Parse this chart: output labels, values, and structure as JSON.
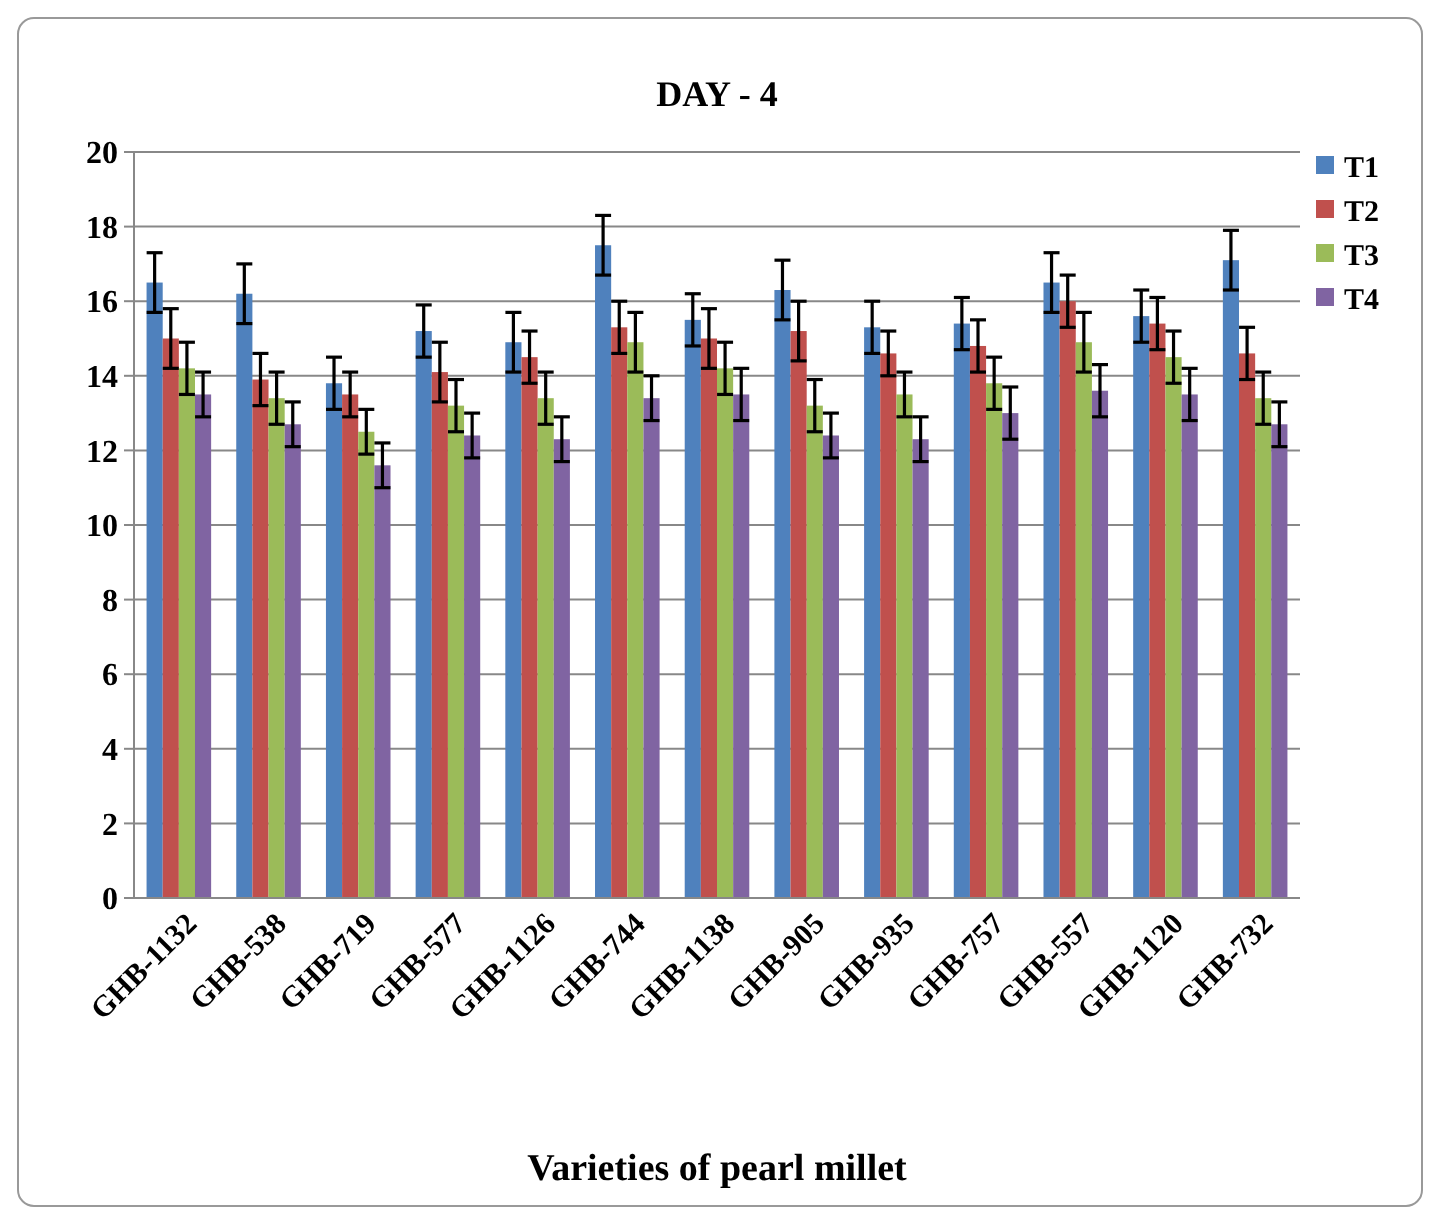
{
  "chart_data": {
    "type": "bar",
    "title": "DAY - 4",
    "xlabel": "Varieties of pearl millet",
    "categories": [
      "GHB-1132",
      "GHB-538",
      "GHB-719",
      "GHB-577",
      "GHB-1126",
      "GHB-744",
      "GHB-1138",
      "GHB-905",
      "GHB-935",
      "GHB-757",
      "GHB-557",
      "GHB-1120",
      "GHB-732"
    ],
    "series": [
      {
        "name": "T1",
        "color": "#4f81bd",
        "values": [
          16.5,
          16.2,
          13.8,
          15.2,
          14.9,
          17.5,
          15.5,
          16.3,
          15.3,
          15.4,
          16.5,
          15.6,
          17.1
        ],
        "errors": [
          0.8,
          0.8,
          0.7,
          0.7,
          0.8,
          0.8,
          0.7,
          0.8,
          0.7,
          0.7,
          0.8,
          0.7,
          0.8
        ]
      },
      {
        "name": "T2",
        "color": "#c0504d",
        "values": [
          15.0,
          13.9,
          13.5,
          14.1,
          14.5,
          15.3,
          15.0,
          15.2,
          14.6,
          14.8,
          16.0,
          15.4,
          14.6
        ],
        "errors": [
          0.8,
          0.7,
          0.6,
          0.8,
          0.7,
          0.7,
          0.8,
          0.8,
          0.6,
          0.7,
          0.7,
          0.7,
          0.7
        ]
      },
      {
        "name": "T3",
        "color": "#9bbb59",
        "values": [
          14.2,
          13.4,
          12.5,
          13.2,
          13.4,
          14.9,
          14.2,
          13.2,
          13.5,
          13.8,
          14.9,
          14.5,
          13.4
        ],
        "errors": [
          0.7,
          0.7,
          0.6,
          0.7,
          0.7,
          0.8,
          0.7,
          0.7,
          0.6,
          0.7,
          0.8,
          0.7,
          0.7
        ]
      },
      {
        "name": "T4",
        "color": "#8064a2",
        "values": [
          13.5,
          12.7,
          11.6,
          12.4,
          12.3,
          13.4,
          13.5,
          12.4,
          12.3,
          13.0,
          13.6,
          13.5,
          12.7
        ],
        "errors": [
          0.6,
          0.6,
          0.6,
          0.6,
          0.6,
          0.6,
          0.7,
          0.6,
          0.6,
          0.7,
          0.7,
          0.7,
          0.6
        ]
      }
    ],
    "ylim": [
      0,
      20
    ],
    "yticks": [
      0,
      2,
      4,
      6,
      8,
      10,
      12,
      14,
      16,
      18,
      20
    ],
    "grid": "y",
    "legend": "top right"
  }
}
